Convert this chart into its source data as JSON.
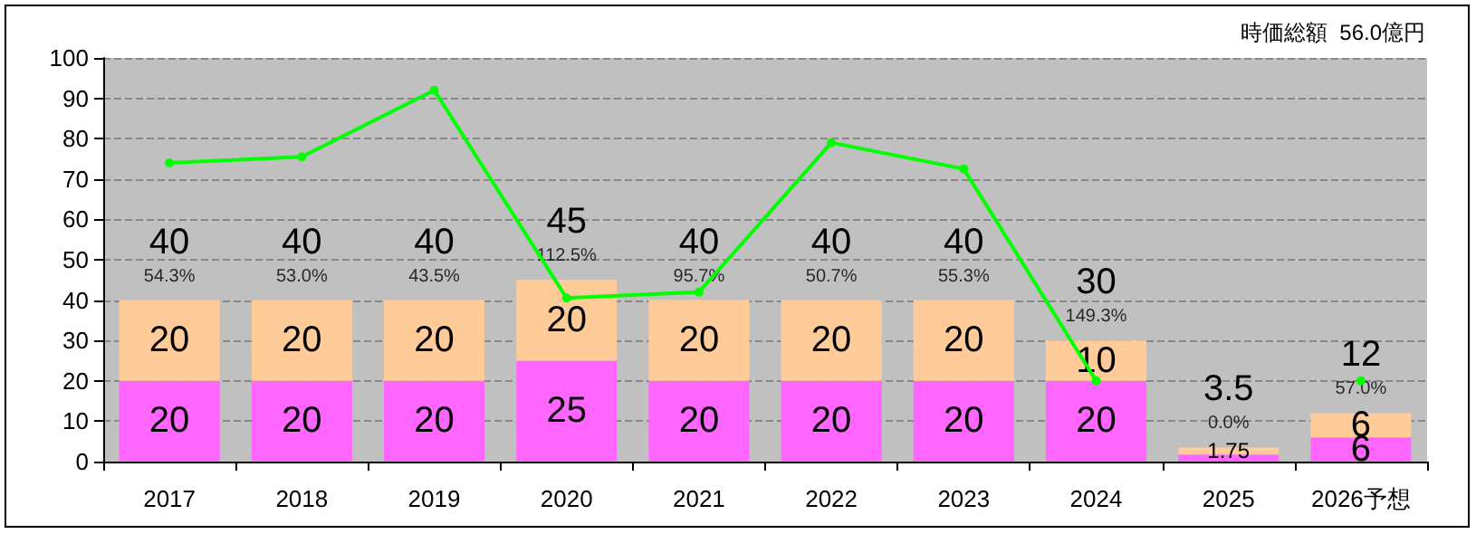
{
  "chart_data": {
    "type": "bar",
    "stacked": true,
    "categories": [
      "2017",
      "2018",
      "2019",
      "2020",
      "2021",
      "2022",
      "2023",
      "2024",
      "2025",
      "2026予想"
    ],
    "series": [
      {
        "color": "#ff66ff",
        "values": [
          20,
          20,
          20,
          25,
          20,
          20,
          20,
          20,
          1.75,
          6
        ],
        "value_labels": [
          "20",
          "20",
          "20",
          "25",
          "20",
          "20",
          "20",
          "20",
          null,
          "6"
        ]
      },
      {
        "color": "#ffcc99",
        "values": [
          20,
          20,
          20,
          20,
          20,
          20,
          20,
          10,
          1.75,
          6
        ],
        "value_labels": [
          "20",
          "20",
          "20",
          "20",
          "20",
          "20",
          "20",
          "10",
          "1.75",
          "6"
        ]
      },
      {
        "type": "line",
        "color": "#00ff00",
        "values": [
          74,
          75.5,
          92,
          40.5,
          42,
          79,
          72.5,
          20,
          null,
          20
        ]
      }
    ],
    "totals": [
      "40",
      "40",
      "40",
      "45",
      "40",
      "40",
      "40",
      "30",
      "3.5",
      "12"
    ],
    "annotations": [
      "時価総額  56.0億円",
      {
        "text": "54.3%",
        "x": "2017",
        "y": 40
      },
      {
        "text": "53.0%",
        "x": "2018",
        "y": 40
      },
      {
        "text": "43.5%",
        "x": "2019",
        "y": 40
      },
      {
        "text": "112.5%",
        "x": "2020",
        "y": 45
      },
      {
        "text": "95.7%",
        "x": "2021",
        "y": 40
      },
      {
        "text": "50.7%",
        "x": "2022",
        "y": 40
      },
      {
        "text": "55.3%",
        "x": "2023",
        "y": 40
      },
      {
        "text": "149.3%",
        "x": "2024",
        "y": 30
      },
      {
        "text": "0.0%",
        "x": "2025",
        "y": 3.5
      },
      {
        "text": "57.0%",
        "x": "2026予想",
        "y": 12
      }
    ],
    "ylim": [
      0,
      100
    ],
    "yticks": [
      0,
      10,
      20,
      30,
      40,
      50,
      60,
      70,
      80,
      90,
      100
    ],
    "grid": "y",
    "marker": "circle"
  }
}
